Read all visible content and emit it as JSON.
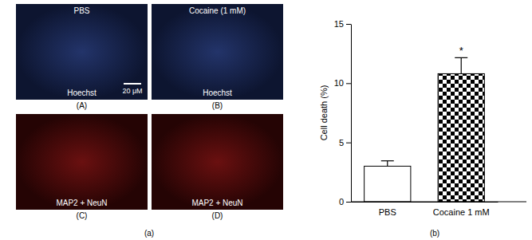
{
  "panel_a": {
    "label": "(a)",
    "images": [
      {
        "label": "(A)",
        "title": "PBS",
        "stain": "Hoechst",
        "scale_bar": "20 μM"
      },
      {
        "label": "(B)",
        "title": "Cocaine (1 mM)",
        "stain": "Hoechst"
      },
      {
        "label": "(C)",
        "stain": "MAP2 + NeuN"
      },
      {
        "label": "(D)",
        "stain": "MAP2 + NeuN"
      }
    ]
  },
  "chart_data": {
    "type": "bar",
    "title": "(b)",
    "y_label": "Cell death (%)",
    "categories": [
      "PBS",
      "Cocaine 1 mM"
    ],
    "values": [
      3.0,
      10.8
    ],
    "errors": [
      0.45,
      1.35
    ],
    "colors": [
      "#ffffff",
      "#000000"
    ],
    "annotations": [
      {
        "text": "*",
        "category": "Cocaine 1 mM"
      }
    ],
    "ylim": [
      0,
      15
    ],
    "yticks": [
      0,
      5,
      10,
      15
    ]
  }
}
